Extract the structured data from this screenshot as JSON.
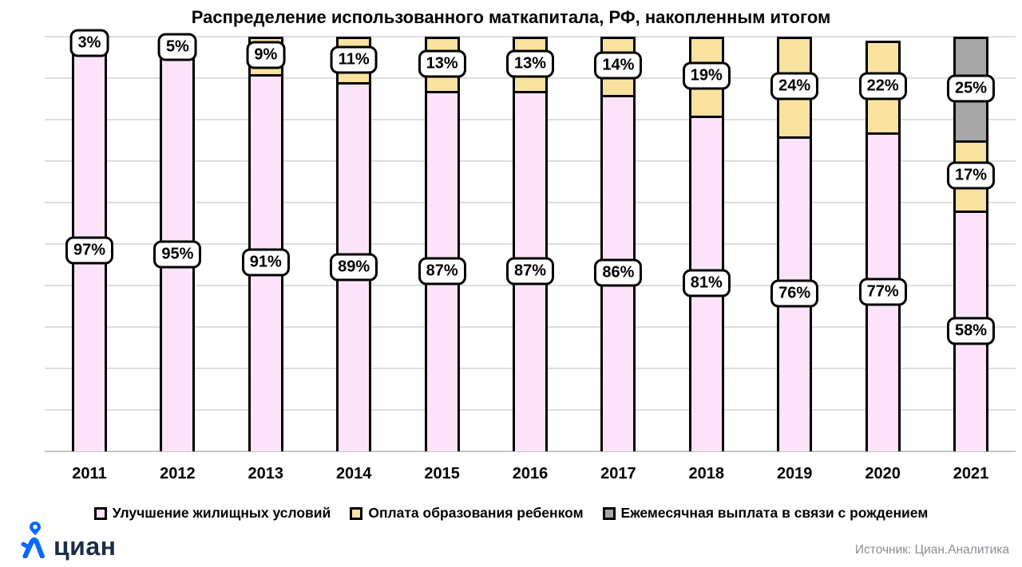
{
  "chart_data": {
    "type": "bar",
    "stacked": true,
    "title": "Распределение использованного маткапитала, РФ, накопленным итогом",
    "unit": "%",
    "categories": [
      "2011",
      "2012",
      "2013",
      "2014",
      "2015",
      "2016",
      "2017",
      "2018",
      "2019",
      "2020",
      "2021"
    ],
    "series": [
      {
        "key": "housing",
        "name": "Улучшение жилищных условий",
        "color": "#fce3f9",
        "values": [
          97,
          95,
          91,
          89,
          87,
          87,
          86,
          81,
          76,
          77,
          58
        ]
      },
      {
        "key": "education",
        "name": "Оплата образования ребенком",
        "color": "#f9e2a0",
        "values": [
          3,
          5,
          9,
          11,
          13,
          13,
          14,
          19,
          24,
          22,
          17
        ]
      },
      {
        "key": "monthly",
        "name": "Ежемесячная выплата в связи с рождением",
        "color": "#a7a7a7",
        "values": [
          0,
          0,
          0,
          0,
          0,
          0,
          0,
          0,
          0,
          0,
          25
        ]
      }
    ],
    "ylim": [
      0,
      100
    ],
    "grid_step": 10,
    "grid": true,
    "legend_position": "bottom",
    "bar_outline_color": "#000000",
    "data_label_style": "white rounded box, bold, centered on segment"
  },
  "legend": [
    {
      "key": "housing",
      "label": "Улучшение жилищных условий"
    },
    {
      "key": "education",
      "label": "Оплата образования ребенком"
    },
    {
      "key": "monthly",
      "label": "Ежемесячная выплата в связи с рождением"
    }
  ],
  "logo": {
    "text": "циан",
    "icon_color": "#0a68fb",
    "text_color": "#1d2c47"
  },
  "source": "Источник: Циан.Аналитика"
}
